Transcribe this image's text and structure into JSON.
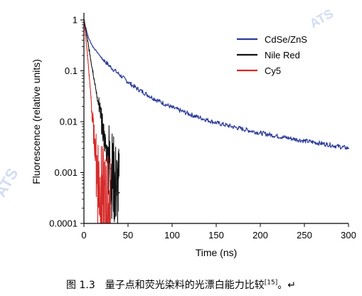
{
  "figure": {
    "caption_prefix": "图 1.3　量子点和荧光染料的光漂白能力比较",
    "caption_ref": "[15]",
    "caption_suffix": "。↵"
  },
  "colors": {
    "CdSe/ZnS": "#2b3b9a",
    "Nile Red": "#111111",
    "Cy5": "#d62a2a"
  },
  "chart_data": {
    "type": "line",
    "title": "",
    "xlabel": "Time (ns)",
    "ylabel": "Fluorescence (relative units)",
    "xlim": [
      0,
      300
    ],
    "ylim": [
      0.0001,
      1
    ],
    "yscale": "log",
    "grid": false,
    "legend_position": "top-right",
    "x_ticks": [
      0,
      50,
      100,
      150,
      200,
      250,
      300
    ],
    "x_tick_labels": [
      "0",
      "50",
      "100",
      "150",
      "200",
      "250",
      "300"
    ],
    "y_ticks": [
      1,
      0.1,
      0.01,
      0.001,
      0.0001
    ],
    "y_tick_labels": [
      "1",
      "0.1",
      "0.01",
      "0.001",
      "0.0001"
    ],
    "series": [
      {
        "name": "CdSe/ZnS",
        "x": [
          0,
          5,
          10,
          20,
          30,
          40,
          50,
          60,
          80,
          100,
          125,
          150,
          175,
          200,
          225,
          250,
          275,
          300
        ],
        "y": [
          1,
          0.45,
          0.3,
          0.18,
          0.12,
          0.085,
          0.06,
          0.045,
          0.028,
          0.019,
          0.013,
          0.0095,
          0.0075,
          0.006,
          0.005,
          0.0042,
          0.0036,
          0.003
        ]
      },
      {
        "name": "Nile Red",
        "x": [
          0,
          3,
          6,
          10,
          15,
          20,
          25,
          30,
          35,
          40
        ],
        "y": [
          1,
          0.5,
          0.25,
          0.1,
          0.03,
          0.01,
          0.003,
          0.0012,
          0.0006,
          0.0004
        ]
      },
      {
        "name": "Cy5",
        "x": [
          0,
          2,
          4,
          6,
          8,
          10,
          12,
          15,
          18,
          20,
          25,
          30
        ],
        "y": [
          1,
          0.5,
          0.2,
          0.08,
          0.03,
          0.01,
          0.004,
          0.0012,
          0.0005,
          0.0003,
          0.0002,
          0.0002
        ]
      }
    ]
  }
}
